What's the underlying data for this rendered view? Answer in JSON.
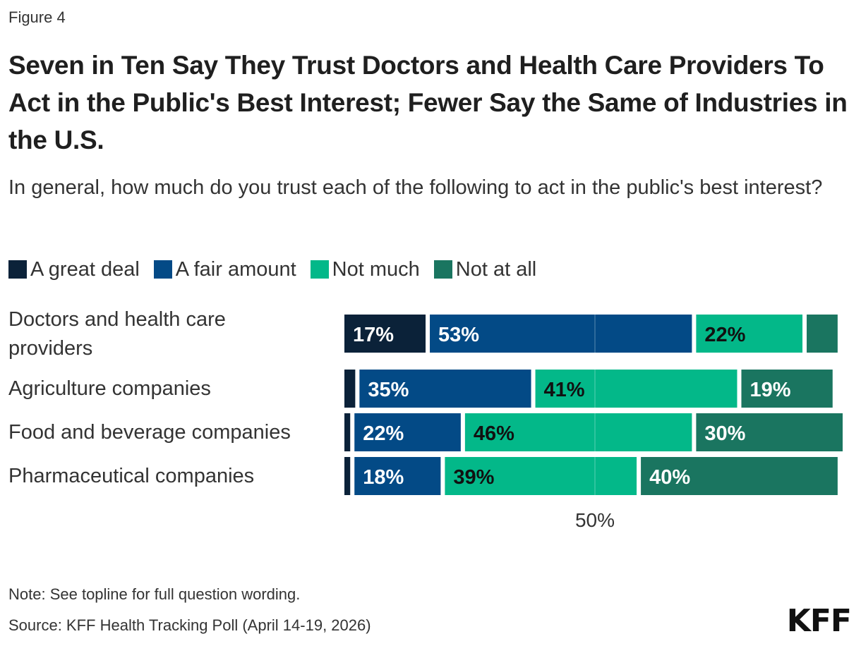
{
  "figure_label": "Figure 4",
  "title": "Seven in Ten Say They Trust Doctors and Health Care Providers To Act in the Public's Best Interest; Fewer Say the Same of Industries in the U.S.",
  "subtitle": "In general, how much do you trust each of the following to act in the public's best interest?",
  "legend": [
    {
      "label": "A great deal",
      "color": "#0b2239"
    },
    {
      "label": "A fair amount",
      "color": "#034a86"
    },
    {
      "label": "Not much",
      "color": "#03b889"
    },
    {
      "label": "Not at all",
      "color": "#1a7560"
    }
  ],
  "chart_data": {
    "type": "bar",
    "orientation": "horizontal",
    "stacked": true,
    "categories": [
      "Doctors and health care providers",
      "Agriculture companies",
      "Food and beverage companies",
      "Pharmaceutical companies"
    ],
    "series": [
      {
        "name": "A great deal",
        "values": [
          17,
          3,
          2,
          2
        ],
        "color": "#0b2239"
      },
      {
        "name": "A fair amount",
        "values": [
          53,
          35,
          22,
          18
        ],
        "color": "#034a86"
      },
      {
        "name": "Not much",
        "values": [
          22,
          41,
          46,
          39
        ],
        "color": "#03b889"
      },
      {
        "name": "Not at all",
        "values": [
          7,
          19,
          30,
          40
        ],
        "color": "#1a7560"
      }
    ],
    "data_labels": [
      [
        "17%",
        "53%",
        "22%",
        ""
      ],
      [
        "",
        "35%",
        "41%",
        "19%"
      ],
      [
        "",
        "22%",
        "46%",
        "30%"
      ],
      [
        "",
        "18%",
        "39%",
        "40%"
      ]
    ],
    "label_colors": [
      "#ffffff",
      "#ffffff",
      "#111111",
      "#ffffff"
    ],
    "xlim": [
      0,
      100
    ],
    "x_ticks": [
      {
        "value": 50,
        "label": "50%"
      }
    ],
    "grid": true,
    "legend_position": "top-left"
  },
  "note": "Note: See topline for full question wording.",
  "source": "Source: KFF Health Tracking Poll (April 14-19, 2026)",
  "logo": "KFF"
}
